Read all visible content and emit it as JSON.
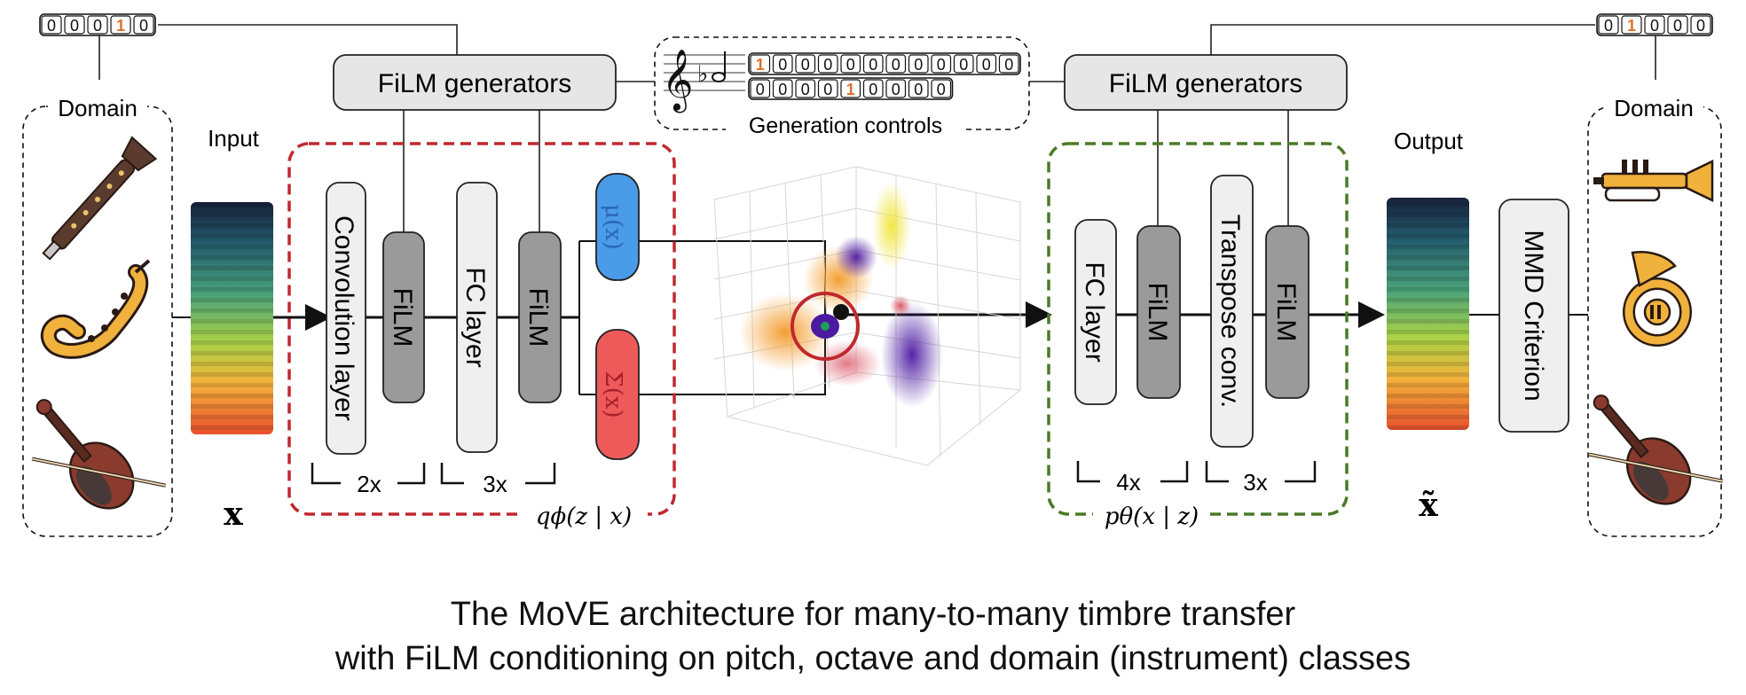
{
  "encoder_onehot": [
    "0",
    "0",
    "0",
    "1",
    "0"
  ],
  "encoder_onehot_active": 3,
  "decoder_onehot": [
    "0",
    "1",
    "0",
    "0",
    "0"
  ],
  "decoder_onehot_active": 1,
  "controls_row1": [
    "1",
    "0",
    "0",
    "0",
    "0",
    "0",
    "0",
    "0",
    "0",
    "0",
    "0",
    "0"
  ],
  "controls_row1_active": 0,
  "controls_row2": [
    "0",
    "0",
    "0",
    "0",
    "1",
    "0",
    "0",
    "0",
    "0"
  ],
  "controls_row2_active": 4,
  "labels": {
    "domain_left": "Domain",
    "domain_right": "Domain",
    "input": "Input",
    "output": "Output",
    "film_generators_left": "FiLM generators",
    "film_generators_right": "FiLM generators",
    "generation_controls": "Generation controls",
    "conv_layer": "Convolution layer",
    "film": "FiLM",
    "fc_layer": "FC layer",
    "transpose_conv": "Transpose conv.",
    "mmd_criterion": "MMD Criterion",
    "mu_x": "μ(x)",
    "sigma_x": "Σ(x)",
    "repeat_2x": "2x",
    "repeat_3x_enc": "3x",
    "repeat_4x": "4x",
    "repeat_3x_dec": "3x",
    "x_symbol": "x",
    "x_tilde_symbol": "x̃",
    "encoder_dist": "qϕ(z | x)",
    "decoder_dist": "pθ(x | z)"
  },
  "caption": {
    "line1": "The MoVE architecture for many-to-many timbre transfer",
    "line2": "with FiLM conditioning on pitch, octave and domain (instrument) classes"
  },
  "colors": {
    "encoder_border": "#c0282f",
    "decoder_border": "#4a7a26",
    "mu_box": "#4a9be8",
    "sigma_box": "#ee5a5a",
    "film_box": "#9a9a9a",
    "light_box": "#efefef",
    "onehot_active": "#e0712a"
  },
  "icons": {
    "domain_left": [
      "clarinet-icon",
      "saxophone-icon",
      "violin-icon"
    ],
    "domain_right": [
      "trumpet-icon",
      "french-horn-icon",
      "violin-icon"
    ]
  }
}
